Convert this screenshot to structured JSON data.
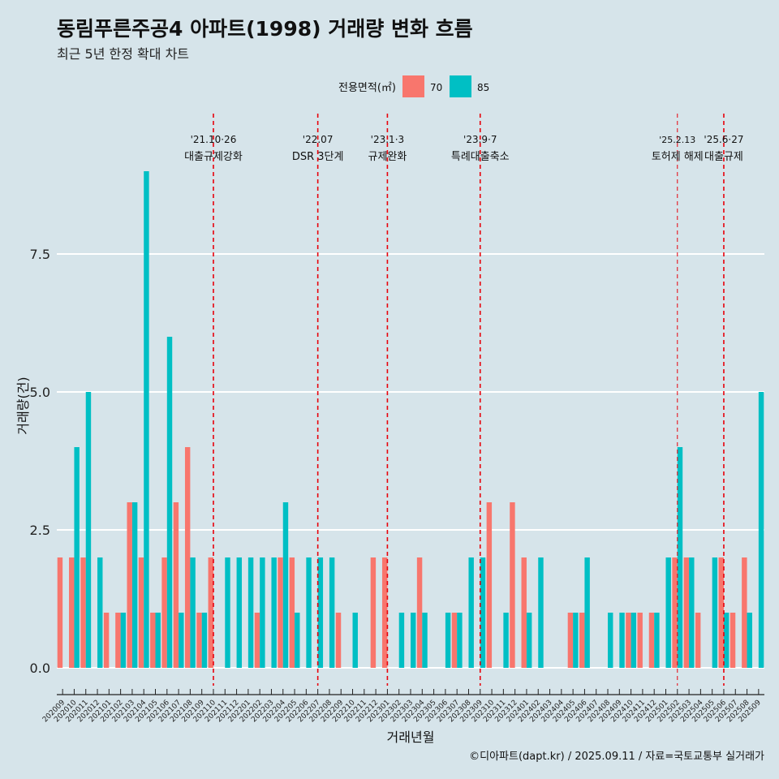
{
  "title": "동림푸른주공4 아파트(1998) 거래량 변화 흐름",
  "subtitle": "최근 5년 한정 확대 차트",
  "caption": "©디아파트(dapt.kr) / 2025.09.11 / 자료=국토교통부 실거래가",
  "colors": {
    "background": "#d6e4ea",
    "area70": "#f8766d",
    "area85": "#00bfc4",
    "event_line": "#e8000b",
    "grid": "#ffffff"
  },
  "chart_data": {
    "type": "bar",
    "xlabel": "거래년월",
    "ylabel": "거래량(건)",
    "ylim": [
      0,
      9
    ],
    "yticks": [
      0.0,
      2.5,
      5.0,
      7.5
    ],
    "grid": true,
    "legend": {
      "title": "전용면적(㎡)",
      "placement": "top"
    },
    "categories": [
      "202009",
      "202010",
      "202011",
      "202012",
      "202101",
      "202102",
      "202103",
      "202104",
      "202105",
      "202106",
      "202107",
      "202108",
      "202109",
      "202110",
      "202111",
      "202112",
      "202201",
      "202202",
      "202203",
      "202204",
      "202205",
      "202206",
      "202207",
      "202208",
      "202209",
      "202210",
      "202211",
      "202212",
      "202301",
      "202302",
      "202303",
      "202304",
      "202305",
      "202306",
      "202307",
      "202308",
      "202309",
      "202310",
      "202311",
      "202312",
      "202401",
      "202402",
      "202403",
      "202404",
      "202405",
      "202406",
      "202407",
      "202408",
      "202409",
      "202410",
      "202411",
      "202412",
      "202501",
      "202502",
      "202503",
      "202504",
      "202505",
      "202506",
      "202507",
      "202508",
      "202509"
    ],
    "series": [
      {
        "name": "70",
        "values": [
          2,
          2,
          2,
          0,
          1,
          1,
          3,
          2,
          1,
          2,
          3,
          4,
          1,
          2,
          0,
          0,
          0,
          1,
          0,
          2,
          2,
          0,
          0,
          0,
          1,
          0,
          0,
          2,
          2,
          0,
          0,
          2,
          0,
          0,
          1,
          0,
          0,
          3,
          0,
          3,
          2,
          0,
          0,
          0,
          1,
          1,
          0,
          0,
          0,
          1,
          1,
          1,
          0,
          2,
          2,
          1,
          0,
          2,
          1,
          2,
          0
        ]
      },
      {
        "name": "85",
        "values": [
          0,
          4,
          5,
          2,
          0,
          1,
          3,
          9,
          1,
          6,
          1,
          2,
          1,
          0,
          2,
          2,
          2,
          2,
          2,
          3,
          1,
          2,
          2,
          2,
          0,
          1,
          0,
          0,
          0,
          1,
          1,
          1,
          0,
          1,
          1,
          2,
          2,
          0,
          1,
          0,
          1,
          2,
          0,
          0,
          1,
          2,
          0,
          1,
          1,
          1,
          0,
          1,
          2,
          4,
          2,
          0,
          2,
          1,
          0,
          1,
          5
        ]
      }
    ],
    "events": [
      {
        "category": "202110",
        "date": "'21.10·26",
        "label": "대출규제강화"
      },
      {
        "category": "202207",
        "date": "'22.07",
        "label": "DSR 3단계"
      },
      {
        "category": "202301",
        "date": "'23.1·3",
        "label": "규제완화"
      },
      {
        "category": "202309",
        "date": "'23.9·7",
        "label": "특례대출축소"
      },
      {
        "category": "202502",
        "date": "'25.2.13",
        "label": "토허제 해제"
      },
      {
        "category": "202506",
        "date": "'25.6·27",
        "label": "대출규제"
      }
    ]
  }
}
